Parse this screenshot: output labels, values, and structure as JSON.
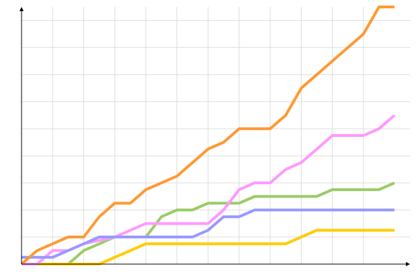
{
  "chart_data": {
    "type": "line",
    "title": "",
    "xlabel": "",
    "ylabel": "",
    "xlim": [
      0,
      25
    ],
    "ylim": [
      0,
      38
    ],
    "grid": true,
    "x_grid_step": 2,
    "y_grid_step": 4,
    "legend": "none",
    "x": [
      0,
      1,
      2,
      3,
      4,
      5,
      6,
      7,
      8,
      9,
      10,
      11,
      12,
      13,
      14,
      15,
      16,
      17,
      18,
      19,
      20,
      21,
      22,
      23,
      24
    ],
    "series": [
      {
        "color": "#99cc66",
        "values": [
          0,
          0,
          0,
          0,
          2,
          3,
          4,
          4,
          4,
          7,
          8,
          8,
          9,
          9,
          9,
          10,
          10,
          10,
          10,
          10,
          11,
          11,
          11,
          11,
          12
        ]
      },
      {
        "color": "#ffcc00",
        "values": [
          0,
          0,
          0,
          0,
          0,
          0,
          1,
          2,
          3,
          3,
          3,
          3,
          3,
          3,
          3,
          3,
          3,
          3,
          4,
          5,
          5,
          5,
          5,
          5,
          5
        ]
      },
      {
        "color": "#ff99ff",
        "values": [
          0,
          0,
          2,
          2,
          3,
          3.5,
          4,
          5,
          6,
          6,
          6,
          6,
          6,
          8,
          11,
          12,
          12,
          14,
          15,
          17,
          19,
          19,
          19,
          20,
          22
        ]
      },
      {
        "color": "#9999ff",
        "values": [
          1,
          1,
          1,
          2,
          3,
          4,
          4,
          4,
          4,
          4,
          4,
          4,
          5,
          7,
          7,
          8,
          8,
          8,
          8,
          8,
          8,
          8,
          8,
          8,
          8
        ]
      },
      {
        "color": "#ff9933",
        "values": [
          0,
          2,
          3,
          4,
          4,
          7,
          9,
          9,
          11,
          12,
          13,
          15,
          17,
          18,
          20,
          20,
          20,
          22,
          26,
          28,
          30,
          32,
          34,
          38,
          38
        ]
      }
    ]
  }
}
